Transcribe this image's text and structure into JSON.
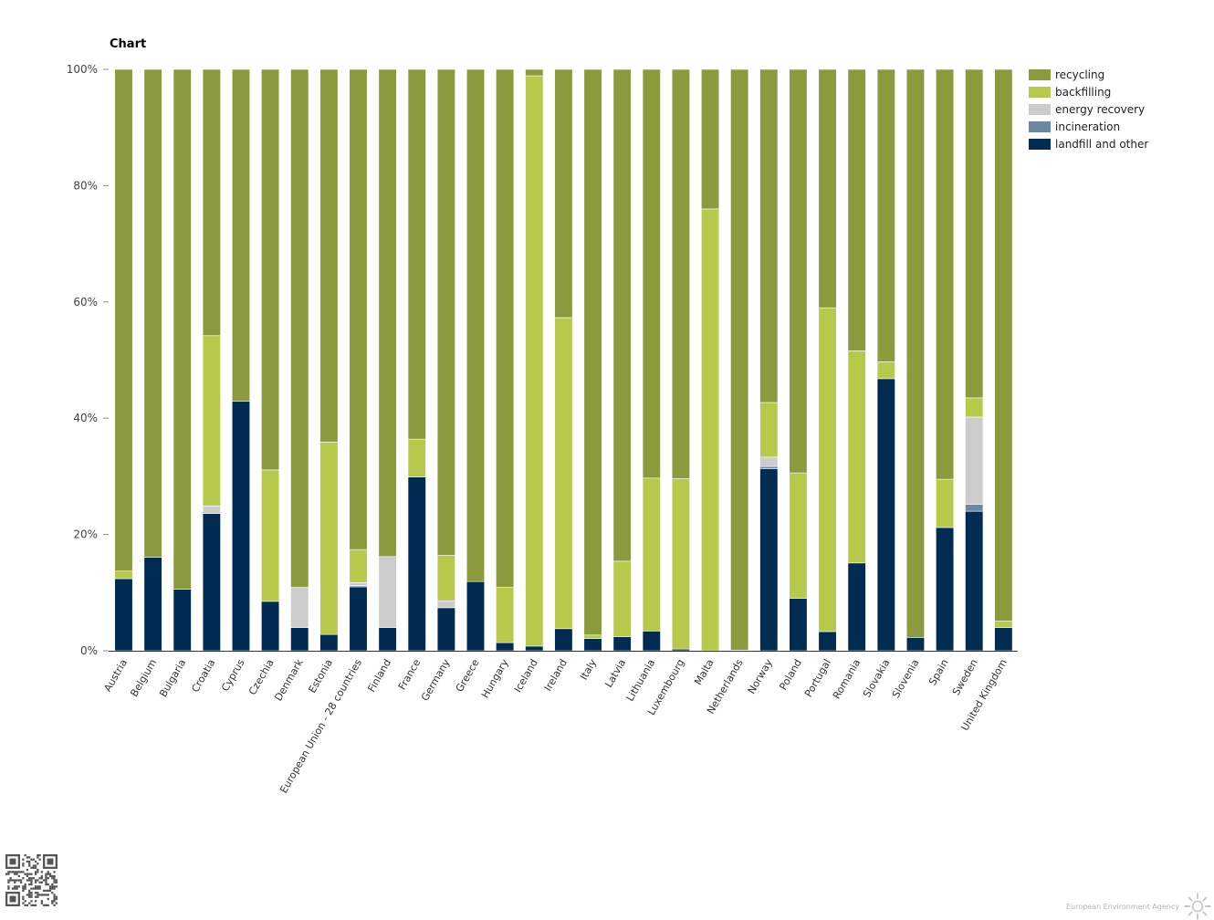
{
  "chart_title": "Chart",
  "brand": {
    "name": "European Environment Agency",
    "logo_icon": "eea-sun-logo-icon"
  },
  "qr_icon": "qr-code-icon",
  "colors": {
    "recycling": "#8a9a3c",
    "backfilling": "#b6c94b",
    "energy_recovery": "#cccccc",
    "incineration": "#6b87a1",
    "landfill_and_other": "#002b52"
  },
  "chart_data": {
    "type": "bar",
    "stacked": true,
    "percent": true,
    "title": "Chart",
    "xlabel": "",
    "ylabel": "",
    "ylim": [
      0,
      100
    ],
    "y_ticks": [
      "0%",
      "20%",
      "40%",
      "60%",
      "80%",
      "100%"
    ],
    "grid": false,
    "legend_position": "top-right",
    "categories": [
      "Austria",
      "Belgium",
      "Bulgaria",
      "Croatia",
      "Cyprus",
      "Czechia",
      "Denmark",
      "Estonia",
      "European Union - 28 countries",
      "Finland",
      "France",
      "Germany",
      "Greece",
      "Hungary",
      "Iceland",
      "Ireland",
      "Italy",
      "Latvia",
      "Lithuania",
      "Luxembourg",
      "Malta",
      "Netherlands",
      "Norway",
      "Poland",
      "Portugal",
      "Romania",
      "Slovakia",
      "Slovenia",
      "Spain",
      "Sweden",
      "United Kingdom"
    ],
    "series": [
      {
        "name": "landfill and other",
        "color": "#002b52",
        "values": [
          12.4,
          16.1,
          10.6,
          23.6,
          42.9,
          8.5,
          4.0,
          2.8,
          11.0,
          4.0,
          29.9,
          7.4,
          11.9,
          1.4,
          0.8,
          3.8,
          2.1,
          2.4,
          3.4,
          0.3,
          0.0,
          0.1,
          31.3,
          9.0,
          3.3,
          15.1,
          46.8,
          2.3,
          21.2,
          24.0,
          4.0
        ]
      },
      {
        "name": "incineration",
        "color": "#6b87a1",
        "values": [
          0.0,
          0.0,
          0.0,
          0.0,
          0.0,
          0.0,
          0.0,
          0.0,
          0.2,
          0.0,
          0.0,
          0.0,
          0.0,
          0.0,
          0.0,
          0.0,
          0.0,
          0.0,
          0.0,
          0.0,
          0.0,
          0.0,
          0.4,
          0.0,
          0.0,
          0.0,
          0.0,
          0.0,
          0.0,
          1.2,
          0.0
        ]
      },
      {
        "name": "energy recovery",
        "color": "#cccccc",
        "values": [
          0.0,
          0.0,
          0.0,
          1.3,
          0.0,
          0.0,
          6.9,
          0.0,
          0.5,
          12.2,
          0.0,
          1.2,
          0.0,
          0.0,
          0.0,
          0.0,
          0.0,
          0.0,
          0.0,
          0.0,
          0.0,
          0.0,
          1.6,
          0.0,
          0.0,
          0.0,
          0.0,
          0.0,
          0.0,
          15.0,
          0.0
        ]
      },
      {
        "name": "backfilling",
        "color": "#b6c94b",
        "values": [
          1.3,
          0.0,
          0.0,
          29.3,
          0.0,
          22.6,
          0.0,
          33.1,
          5.7,
          0.0,
          6.5,
          7.8,
          0.0,
          9.5,
          98.1,
          53.5,
          0.6,
          13.0,
          26.3,
          29.3,
          76.0,
          0.0,
          9.4,
          21.6,
          55.7,
          36.5,
          2.9,
          0.0,
          8.3,
          3.3,
          1.1
        ]
      },
      {
        "name": "recycling",
        "color": "#8a9a3c",
        "values": [
          86.3,
          83.9,
          89.4,
          45.8,
          57.1,
          68.9,
          89.1,
          64.1,
          82.6,
          83.8,
          63.6,
          83.6,
          88.1,
          89.1,
          1.1,
          42.7,
          97.3,
          84.6,
          70.3,
          70.4,
          24.0,
          99.9,
          57.3,
          69.4,
          41.0,
          48.4,
          50.3,
          97.7,
          70.5,
          56.5,
          94.9
        ]
      }
    ],
    "legend_order": [
      "recycling",
      "backfilling",
      "energy recovery",
      "incineration",
      "landfill and other"
    ]
  }
}
